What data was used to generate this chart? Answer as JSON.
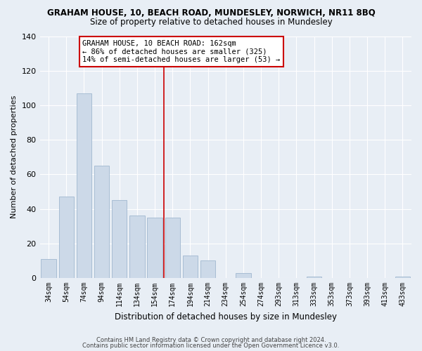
{
  "title": "GRAHAM HOUSE, 10, BEACH ROAD, MUNDESLEY, NORWICH, NR11 8BQ",
  "subtitle": "Size of property relative to detached houses in Mundesley",
  "xlabel": "Distribution of detached houses by size in Mundesley",
  "ylabel": "Number of detached properties",
  "categories": [
    "34sqm",
    "54sqm",
    "74sqm",
    "94sqm",
    "114sqm",
    "134sqm",
    "154sqm",
    "174sqm",
    "194sqm",
    "214sqm",
    "234sqm",
    "254sqm",
    "274sqm",
    "293sqm",
    "313sqm",
    "333sqm",
    "353sqm",
    "373sqm",
    "393sqm",
    "413sqm",
    "433sqm"
  ],
  "values": [
    11,
    47,
    107,
    65,
    45,
    36,
    35,
    35,
    13,
    10,
    0,
    3,
    0,
    0,
    0,
    1,
    0,
    0,
    0,
    0,
    1
  ],
  "bar_color": "#ccd9e8",
  "bar_edge_color": "#a8bdd4",
  "vline_x_index": 7,
  "vline_color": "#cc0000",
  "ylim": [
    0,
    140
  ],
  "yticks": [
    0,
    20,
    40,
    60,
    80,
    100,
    120,
    140
  ],
  "annotation_title": "GRAHAM HOUSE, 10 BEACH ROAD: 162sqm",
  "annotation_line1": "← 86% of detached houses are smaller (325)",
  "annotation_line2": "14% of semi-detached houses are larger (53) →",
  "annotation_box_color": "#ffffff",
  "annotation_box_edge": "#cc0000",
  "footer1": "Contains HM Land Registry data © Crown copyright and database right 2024.",
  "footer2": "Contains public sector information licensed under the Open Government Licence v3.0.",
  "bg_color": "#e8eef5",
  "grid_color": "#ffffff",
  "title_fontsize": 8.5,
  "subtitle_fontsize": 8.5
}
